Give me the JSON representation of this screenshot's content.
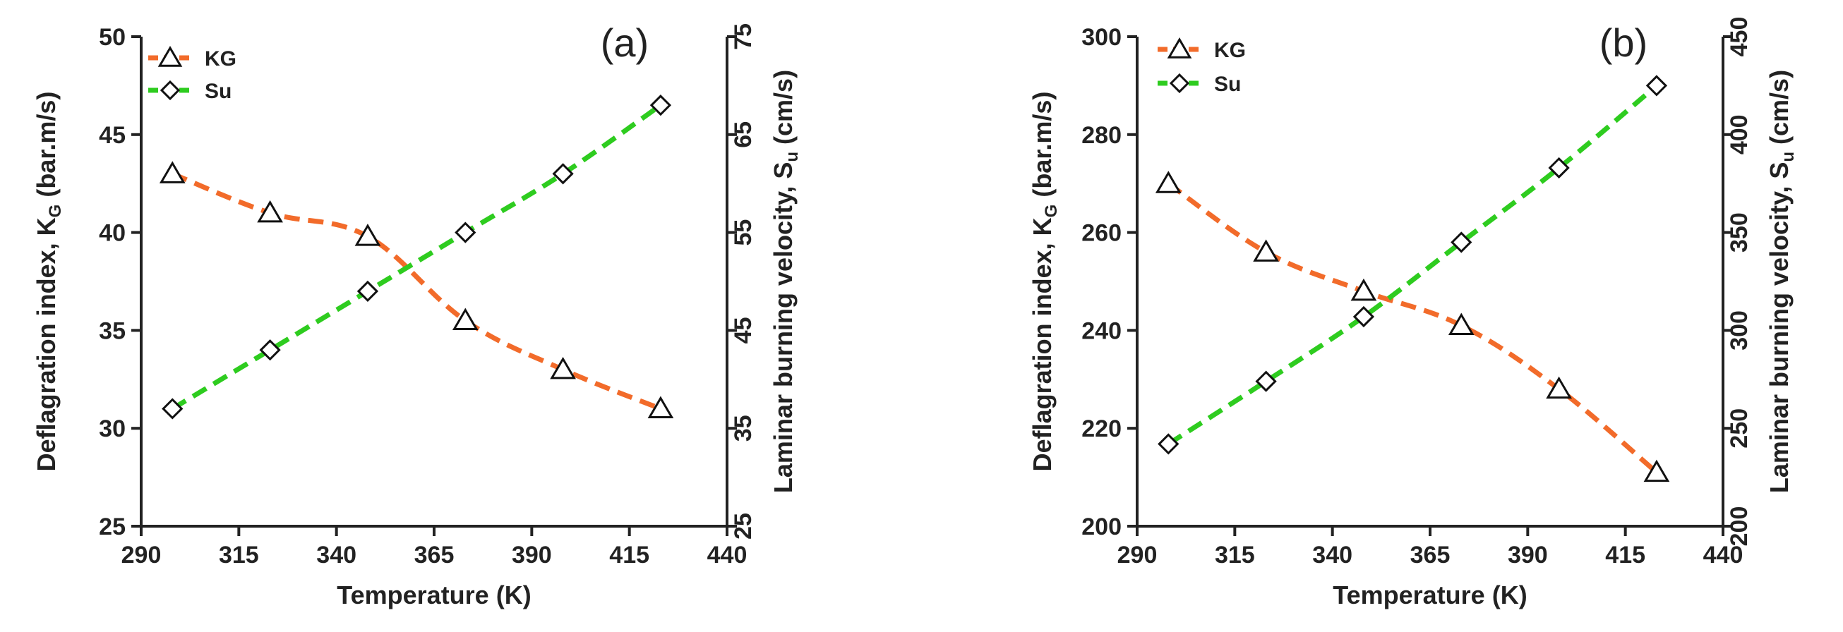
{
  "chart_data": [
    {
      "type": "line",
      "panel_label": "(a)",
      "xlabel": "Temperature (K)",
      "ylabel": {
        "main": "Deflagration index, K",
        "sub": "G",
        "unit": " (bar.m/s)"
      },
      "y2label": {
        "main": "Laminar burning velocity, S",
        "sub": "u",
        "unit": " (cm/s)"
      },
      "xlim": [
        290,
        440
      ],
      "xticks": [
        "290",
        "315",
        "340",
        "365",
        "390",
        "415",
        "440"
      ],
      "ylim": [
        25,
        50
      ],
      "yticks": [
        "25",
        "30",
        "35",
        "40",
        "45",
        "50"
      ],
      "y2lim": [
        25,
        75
      ],
      "y2ticks": [
        "25",
        "35",
        "45",
        "55",
        "65",
        "75"
      ],
      "legend_position": "top-left",
      "series": [
        {
          "name": "KG",
          "axis": "left",
          "marker": "triangle",
          "color": "#f26b2a",
          "x": [
            298,
            323,
            348,
            373,
            398,
            423
          ],
          "values": [
            43,
            41,
            39.8,
            35.5,
            33,
            31
          ]
        },
        {
          "name": "Su",
          "axis": "right",
          "marker": "diamond",
          "color": "#2ecc1f",
          "x": [
            298,
            323,
            348,
            373,
            398,
            423
          ],
          "values": [
            37,
            43,
            49,
            55,
            61,
            68
          ]
        }
      ]
    },
    {
      "type": "line",
      "panel_label": "(b)",
      "xlabel": "Temperature (K)",
      "ylabel": {
        "main": "Deflagration index, K",
        "sub": "G",
        "unit": " (bar.m/s)"
      },
      "y2label": {
        "main": "Laminar burning velocity, S",
        "sub": "u",
        "unit": " (cm/s)"
      },
      "xlim": [
        290,
        440
      ],
      "xticks": [
        "290",
        "315",
        "340",
        "365",
        "390",
        "415",
        "440"
      ],
      "ylim": [
        200,
        300
      ],
      "yticks": [
        "200",
        "220",
        "240",
        "260",
        "280",
        "300"
      ],
      "y2lim": [
        200,
        450
      ],
      "y2ticks": [
        "200",
        "250",
        "300",
        "350",
        "400",
        "450"
      ],
      "legend_position": "top-left",
      "series": [
        {
          "name": "KG",
          "axis": "left",
          "marker": "triangle",
          "color": "#f26b2a",
          "x": [
            298,
            323,
            348,
            373,
            398,
            423
          ],
          "values": [
            270,
            256,
            248,
            241,
            228,
            211
          ]
        },
        {
          "name": "Su",
          "axis": "right",
          "marker": "diamond",
          "color": "#2ecc1f",
          "x": [
            298,
            323,
            348,
            373,
            398,
            423
          ],
          "values": [
            242,
            274,
            307,
            345,
            383,
            425
          ]
        }
      ]
    }
  ]
}
